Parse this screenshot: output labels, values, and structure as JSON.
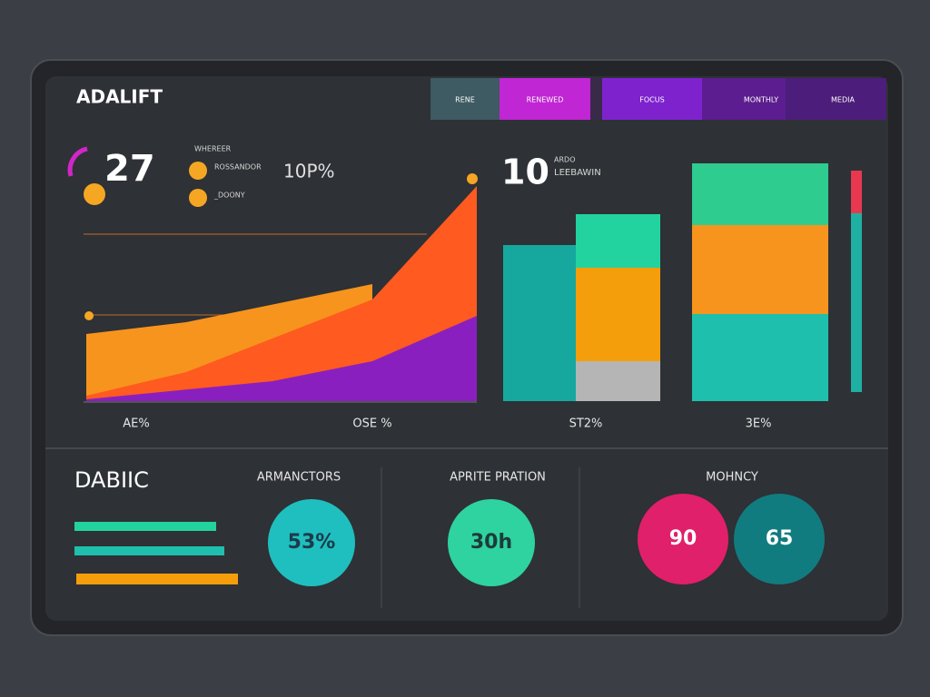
{
  "header": {
    "title": "ADALIFT",
    "tabs": [
      "RENE",
      "RENEWED",
      "FOCUS",
      "MONTHLY",
      "MEDIA"
    ]
  },
  "stats": {
    "main_value": "27",
    "legend_title": "WHEREER",
    "legend_items": [
      "ROSSANDOR",
      "_DOONY"
    ],
    "percent": "10P%",
    "second_value": "10",
    "second_caption": [
      "ARDO",
      "LEEBAWIN"
    ]
  },
  "chart_labels": [
    "AE%",
    "OSE %",
    "ST2%",
    "3E%"
  ],
  "bottom": {
    "title": "DABIIC",
    "sections": [
      {
        "heading": "ARMANCTORS",
        "circles": [
          "53%"
        ]
      },
      {
        "heading": "APRITE PRATION",
        "circles": [
          "30h"
        ]
      },
      {
        "heading": "MOHNCY",
        "circles": [
          "90",
          "65"
        ]
      }
    ]
  }
}
